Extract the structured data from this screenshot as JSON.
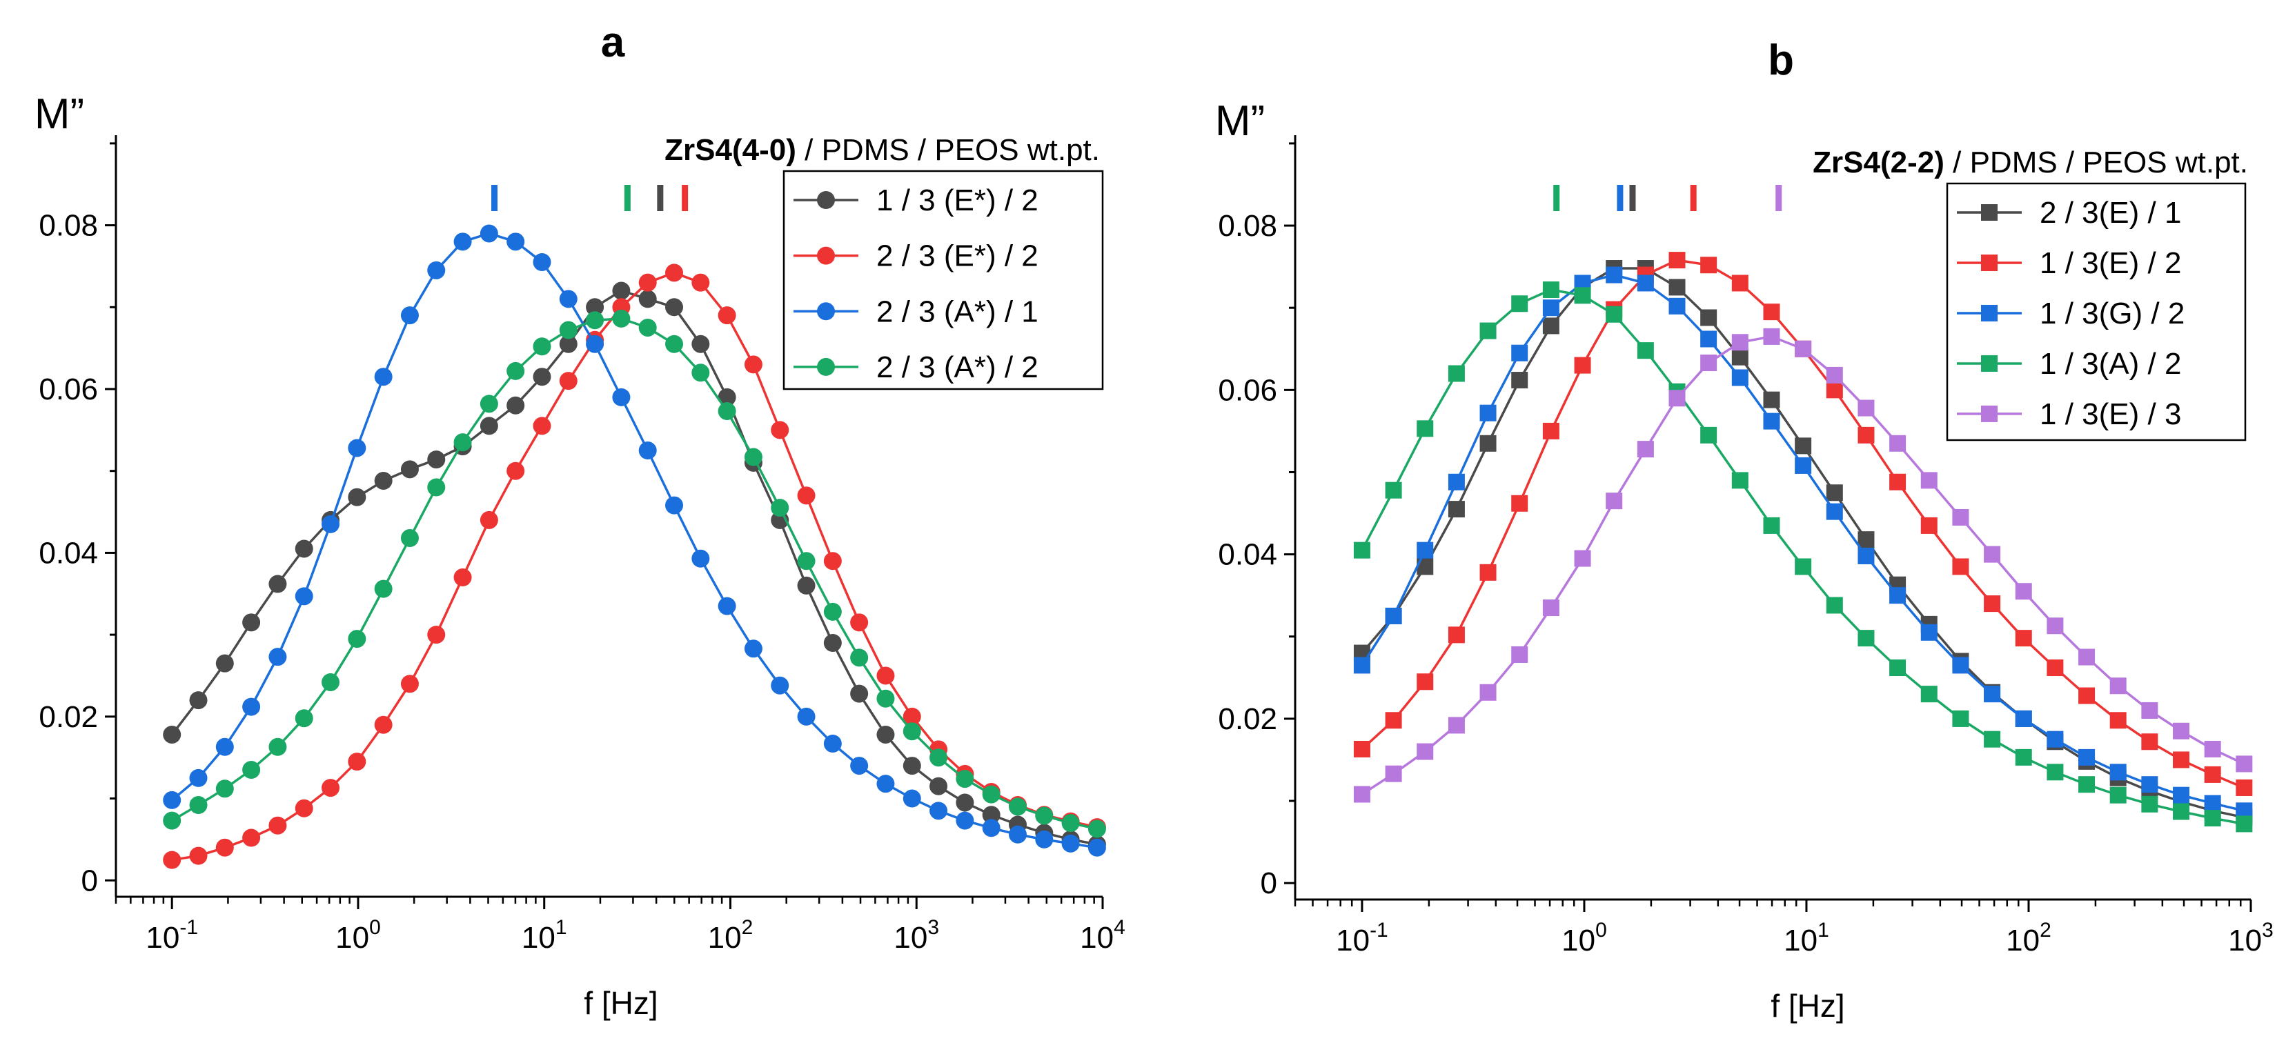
{
  "chart_data": [
    {
      "type": "line",
      "panel_label": "a",
      "ylabel": "M”",
      "xlabel": "f [Hz]",
      "xscale": "log",
      "xlim": [
        0.05,
        10000
      ],
      "ylim": [
        -0.002,
        0.091
      ],
      "yticks": [
        "0",
        "0.02",
        "0.04",
        "0.06",
        "0.08"
      ],
      "xticks": [
        {
          "base": "10",
          "exp": "-1"
        },
        {
          "base": "10",
          "exp": "0"
        },
        {
          "base": "10",
          "exp": "1"
        },
        {
          "base": "10",
          "exp": "2"
        },
        {
          "base": "10",
          "exp": "3"
        },
        {
          "base": "10",
          "exp": "4"
        }
      ],
      "title_bold": "ZrS4(4-0)",
      "title_rest": " / PDMS / PEOS wt.pt.",
      "legend_position": "top-right",
      "marker": "circle",
      "series": [
        {
          "name": "1 / 3 (E*) / 2",
          "color": "#4a4a4a",
          "peak": 42,
          "values": [
            0.0178,
            0.022,
            0.0265,
            0.0315,
            0.0362,
            0.0405,
            0.044,
            0.0468,
            0.0488,
            0.0502,
            0.0514,
            0.053,
            0.0555,
            0.058,
            0.0615,
            0.0655,
            0.07,
            0.072,
            0.071,
            0.07,
            0.0655,
            0.059,
            0.051,
            0.044,
            0.036,
            0.029,
            0.0228,
            0.0178,
            0.014,
            0.0115,
            0.0095,
            0.008,
            0.0068,
            0.0058,
            0.005,
            0.0044
          ]
        },
        {
          "name": "2 / 3 (E*) / 2",
          "color": "#ee3333",
          "peak": 57,
          "values": [
            0.0025,
            0.003,
            0.004,
            0.0052,
            0.0067,
            0.0088,
            0.0113,
            0.0145,
            0.019,
            0.024,
            0.03,
            0.037,
            0.044,
            0.05,
            0.0555,
            0.061,
            0.066,
            0.07,
            0.073,
            0.0742,
            0.073,
            0.069,
            0.063,
            0.055,
            0.047,
            0.039,
            0.0315,
            0.025,
            0.02,
            0.016,
            0.013,
            0.0108,
            0.0092,
            0.008,
            0.0072,
            0.0065
          ]
        },
        {
          "name": "2 / 3 (A*) / 1",
          "color": "#1a6fdc",
          "peak": 5.4,
          "values": [
            0.0098,
            0.0125,
            0.0163,
            0.0212,
            0.0273,
            0.0347,
            0.0435,
            0.0528,
            0.0615,
            0.069,
            0.0745,
            0.078,
            0.079,
            0.078,
            0.0755,
            0.071,
            0.0655,
            0.059,
            0.0525,
            0.0458,
            0.0393,
            0.0335,
            0.0283,
            0.0238,
            0.02,
            0.0167,
            0.014,
            0.0118,
            0.01,
            0.0085,
            0.0073,
            0.0064,
            0.0056,
            0.005,
            0.0045,
            0.004
          ]
        },
        {
          "name": "2 / 3 (A*) / 2",
          "color": "#1aa865",
          "peak": 28,
          "values": [
            0.0073,
            0.0092,
            0.0112,
            0.0135,
            0.0163,
            0.0198,
            0.0242,
            0.0295,
            0.0356,
            0.0418,
            0.048,
            0.0535,
            0.0582,
            0.0622,
            0.0652,
            0.0672,
            0.0684,
            0.0686,
            0.0675,
            0.0655,
            0.062,
            0.0573,
            0.0517,
            0.0455,
            0.039,
            0.0328,
            0.0272,
            0.0222,
            0.0182,
            0.015,
            0.0124,
            0.0105,
            0.009,
            0.0079,
            0.007,
            0.0063
          ]
        }
      ]
    },
    {
      "type": "line",
      "panel_label": "b",
      "ylabel": "M”",
      "xlabel": "f [Hz]",
      "xscale": "log",
      "xlim": [
        0.05,
        1000
      ],
      "ylim": [
        -0.002,
        0.091
      ],
      "yticks": [
        "0",
        "0.02",
        "0.04",
        "0.06",
        "0.08"
      ],
      "xticks": [
        {
          "base": "10",
          "exp": "-1"
        },
        {
          "base": "10",
          "exp": "0"
        },
        {
          "base": "10",
          "exp": "1"
        },
        {
          "base": "10",
          "exp": "2"
        },
        {
          "base": "10",
          "exp": "3"
        }
      ],
      "title_bold": "ZrS4(2-2)",
      "title_rest": " / PDMS / PEOS wt.pt.",
      "legend_position": "top-right",
      "marker": "square",
      "series": [
        {
          "name": "2 / 3(E) / 1",
          "color": "#4a4a4a",
          "peak": 1.65,
          "values": [
            0.028,
            0.0325,
            0.0385,
            0.0455,
            0.0535,
            0.0612,
            0.0678,
            0.0725,
            0.0748,
            0.0748,
            0.0725,
            0.0688,
            0.064,
            0.0588,
            0.0532,
            0.0475,
            0.0418,
            0.0363,
            0.0315,
            0.027,
            0.0232,
            0.02,
            0.0172,
            0.0148,
            0.0128,
            0.0112,
            0.0099,
            0.0088,
            0.008
          ]
        },
        {
          "name": "1 / 3(E) / 2",
          "color": "#ee3333",
          "peak": 3.1,
          "values": [
            0.0163,
            0.0198,
            0.0245,
            0.0302,
            0.0378,
            0.0462,
            0.055,
            0.063,
            0.0698,
            0.074,
            0.0758,
            0.0752,
            0.073,
            0.0695,
            0.065,
            0.06,
            0.0545,
            0.0488,
            0.0435,
            0.0385,
            0.034,
            0.0298,
            0.0262,
            0.0228,
            0.0198,
            0.0172,
            0.015,
            0.0132,
            0.0116
          ]
        },
        {
          "name": "1 / 3(G) / 2",
          "color": "#1a6fdc",
          "peak": 1.45,
          "values": [
            0.0265,
            0.0325,
            0.0405,
            0.0488,
            0.0572,
            0.0645,
            0.07,
            0.073,
            0.074,
            0.073,
            0.0702,
            0.0662,
            0.0615,
            0.0562,
            0.0508,
            0.0452,
            0.0398,
            0.035,
            0.0305,
            0.0265,
            0.023,
            0.02,
            0.0175,
            0.0153,
            0.0135,
            0.012,
            0.0107,
            0.0097,
            0.0088
          ]
        },
        {
          "name": "1 / 3(A) / 2",
          "color": "#1aa865",
          "peak": 0.75,
          "values": [
            0.0405,
            0.0478,
            0.0553,
            0.062,
            0.0672,
            0.0705,
            0.0722,
            0.0715,
            0.0692,
            0.0648,
            0.0598,
            0.0545,
            0.049,
            0.0435,
            0.0385,
            0.0338,
            0.0298,
            0.0262,
            0.023,
            0.02,
            0.0175,
            0.0153,
            0.0135,
            0.012,
            0.0107,
            0.0096,
            0.0087,
            0.0079,
            0.0072
          ]
        },
        {
          "name": "1 / 3(E) / 3",
          "color": "#b678dc",
          "peak": 7.5,
          "values": [
            0.0108,
            0.0133,
            0.016,
            0.0192,
            0.0232,
            0.0278,
            0.0335,
            0.0395,
            0.0465,
            0.0528,
            0.059,
            0.0633,
            0.0658,
            0.0665,
            0.065,
            0.0618,
            0.0578,
            0.0535,
            0.049,
            0.0445,
            0.04,
            0.0355,
            0.0313,
            0.0275,
            0.024,
            0.021,
            0.0185,
            0.0163,
            0.0145
          ]
        }
      ]
    }
  ]
}
